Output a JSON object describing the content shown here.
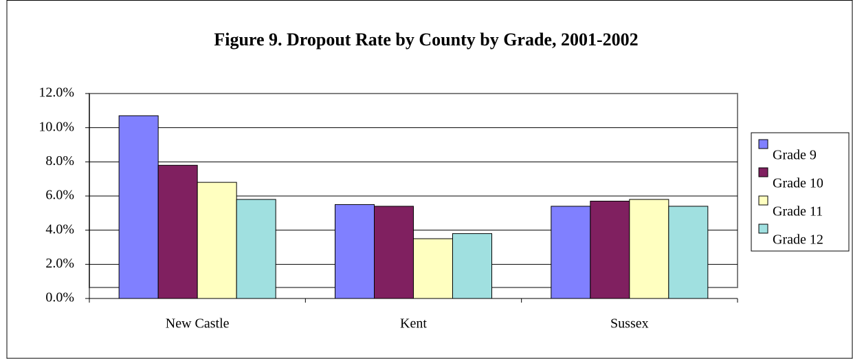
{
  "chart_data": {
    "type": "bar",
    "title": "Figure 9.  Dropout Rate by County by Grade, 2001-2002",
    "categories": [
      "New Castle",
      "Kent",
      "Sussex"
    ],
    "series": [
      {
        "name": "Grade 9",
        "color": "#8080ff",
        "values": [
          10.7,
          5.5,
          5.4
        ]
      },
      {
        "name": "Grade 10",
        "color": "#802060",
        "values": [
          7.8,
          5.4,
          5.7
        ]
      },
      {
        "name": "Grade 11",
        "color": "#ffffc0",
        "values": [
          6.8,
          3.5,
          5.8
        ]
      },
      {
        "name": "Grade 12",
        "color": "#a0e0e0",
        "values": [
          5.8,
          3.8,
          5.4
        ]
      }
    ],
    "ylim": [
      0,
      12
    ],
    "yticks": [
      {
        "value": 0,
        "label": "0.0%"
      },
      {
        "value": 2,
        "label": "2.0%"
      },
      {
        "value": 4,
        "label": "4.0%"
      },
      {
        "value": 6,
        "label": "6.0%"
      },
      {
        "value": 8,
        "label": "8.0%"
      },
      {
        "value": 10,
        "label": "10.0%"
      },
      {
        "value": 12,
        "label": "12.0%"
      }
    ],
    "grid": true,
    "legend": "right"
  }
}
